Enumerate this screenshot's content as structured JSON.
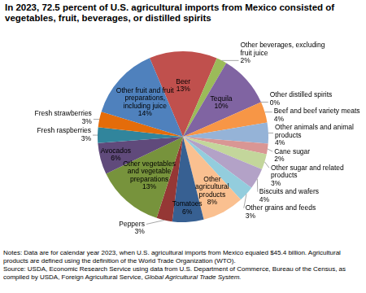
{
  "chart_data": {
    "type": "pie",
    "title": "In 2023, 72.5 percent of U.S. agricultural imports from Mexico consisted of vegetables, fruit, beverages, or distilled spirits",
    "categories": [
      "Beer",
      "Other beverages, excluding fruit juice",
      "Tequila",
      "Other distilled spirits",
      "Beef and beef variety meats",
      "Other animals and animal products",
      "Cane sugar",
      "Other sugar and related products",
      "Biscuits and wafers",
      "Other grains and feeds",
      "Other agricultural products",
      "Tomatoes",
      "Peppers",
      "Other vegetables and vegetable preparations",
      "Avocados",
      "Fresh raspberries",
      "Fresh strawberries",
      "Other fruit and fruit preparations, including juice"
    ],
    "values": [
      13,
      2,
      10,
      0,
      4,
      4,
      2,
      3,
      4,
      3,
      8,
      6,
      3,
      13,
      6,
      3,
      3,
      14
    ],
    "value_labels": [
      "13%",
      "2%",
      "10%",
      "0%",
      "4%",
      "4%",
      "2%",
      "3%",
      "4%",
      "3%",
      "8%",
      "6%",
      "3%",
      "13%",
      "6%",
      "3%",
      "3%",
      "14%"
    ],
    "colors": [
      "#c0504d",
      "#9bbb59",
      "#8064a2",
      "#4bacc6",
      "#f79646",
      "#95b3d7",
      "#d99694",
      "#c3d69b",
      "#b3a2c7",
      "#93cddd",
      "#fac090",
      "#376092",
      "#953735",
      "#77933c",
      "#604a7b",
      "#31859c",
      "#e46c0a",
      "#4f81bd"
    ],
    "data_labels": true
  },
  "notes": "Notes: Data are for calendar year 2023, when U.S. agricultural imports from Mexico equaled $45.4 billion. Agricultural products are defined using the definition of the World Trade Organization (WTO).",
  "source": {
    "text": "Source: USDA, Economic Research Service using data from U.S. Department of Commerce, Bureau of the Census, as compiled by USDA, Foreign Agricultural Service,",
    "italic": "Global Agricultural Trade System."
  }
}
